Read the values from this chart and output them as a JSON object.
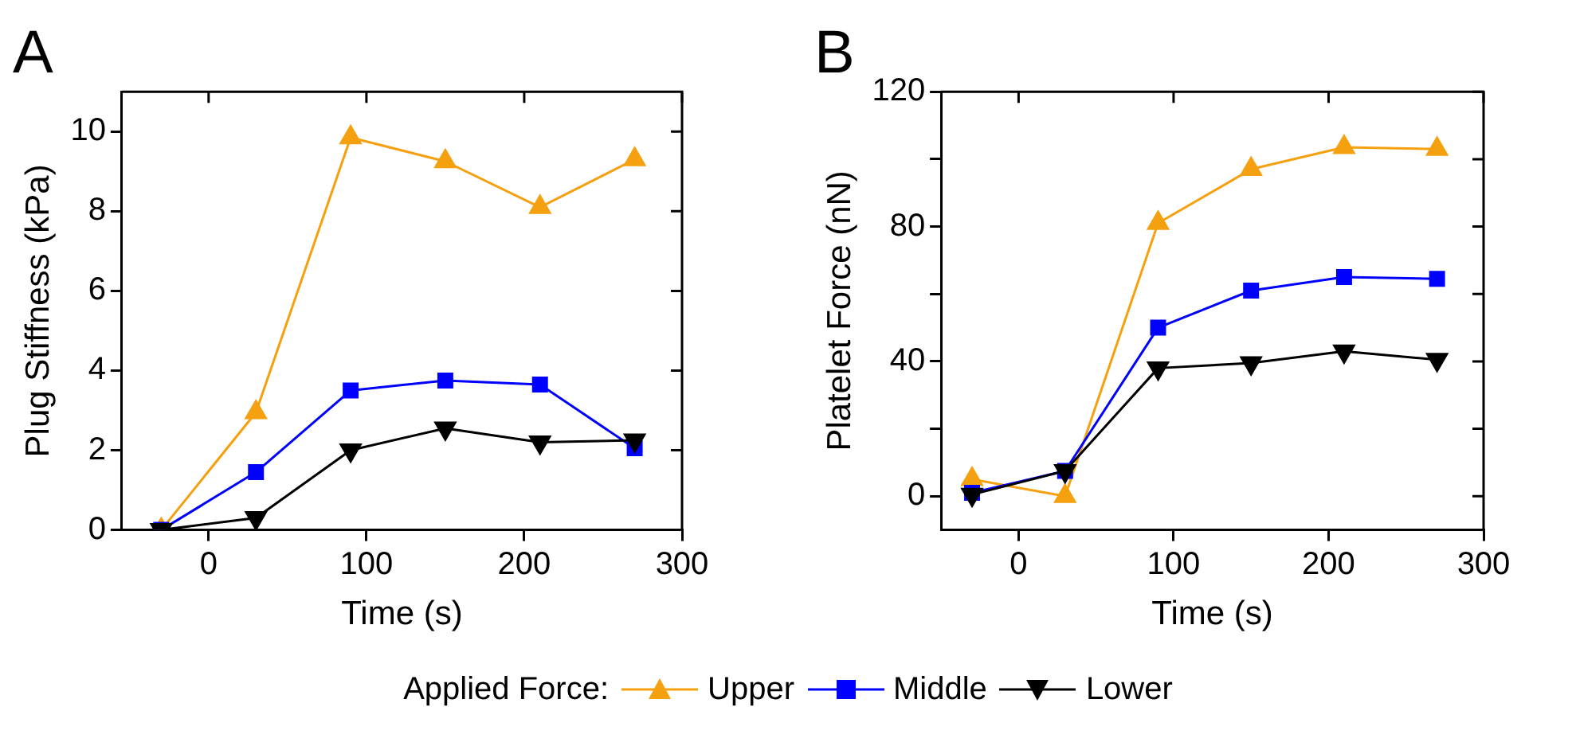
{
  "chart_data": [
    {
      "type": "line",
      "title": "A",
      "xlabel": "Time (s)",
      "ylabel": "Plug Stiffness (kPa)",
      "x": [
        -30,
        30,
        90,
        150,
        210,
        270
      ],
      "xlim": [
        -55,
        300
      ],
      "xticks": [
        0,
        100,
        200,
        300
      ],
      "ylim": [
        0,
        11
      ],
      "yticks": [
        0,
        2,
        4,
        6,
        8,
        10
      ],
      "grid": false,
      "legend": "bottom",
      "legend_title": "Applied Force:",
      "series": [
        {
          "name": "Upper",
          "color": "#f5a00f",
          "marker": "triangle",
          "values": [
            0,
            2.95,
            9.85,
            9.25,
            8.1,
            9.3
          ]
        },
        {
          "name": "Middle",
          "color": "#0000ff",
          "marker": "square",
          "values": [
            0,
            1.45,
            3.5,
            3.75,
            3.65,
            2.05
          ]
        },
        {
          "name": "Lower",
          "color": "#000000",
          "marker": "triangle-down",
          "values": [
            0,
            0.3,
            2.0,
            2.55,
            2.2,
            2.25
          ]
        }
      ]
    },
    {
      "type": "line",
      "title": "B",
      "xlabel": "Time (s)",
      "ylabel": "Platelet Force (nN)",
      "x": [
        -30,
        30,
        90,
        150,
        210,
        270
      ],
      "xlim": [
        -50,
        300
      ],
      "xticks": [
        0,
        100,
        200,
        300
      ],
      "ylim": [
        -10,
        120
      ],
      "yticks": [
        0,
        {
          "value": 20,
          "label": null
        },
        40,
        {
          "value": 60,
          "label": null
        },
        80,
        {
          "value": 100,
          "label": null
        },
        120
      ],
      "grid": false,
      "series": [
        {
          "color": "#f5a00f",
          "marker": "triangle",
          "values": [
            5,
            0,
            81,
            97,
            103.5,
            103
          ]
        },
        {
          "color": "#0000ff",
          "marker": "square",
          "values": [
            1,
            7.5,
            50,
            61,
            65,
            64.5
          ]
        },
        {
          "color": "#000000",
          "marker": "triangle-down",
          "values": [
            0.5,
            7.5,
            38,
            39.5,
            43,
            40.5
          ]
        }
      ]
    }
  ]
}
